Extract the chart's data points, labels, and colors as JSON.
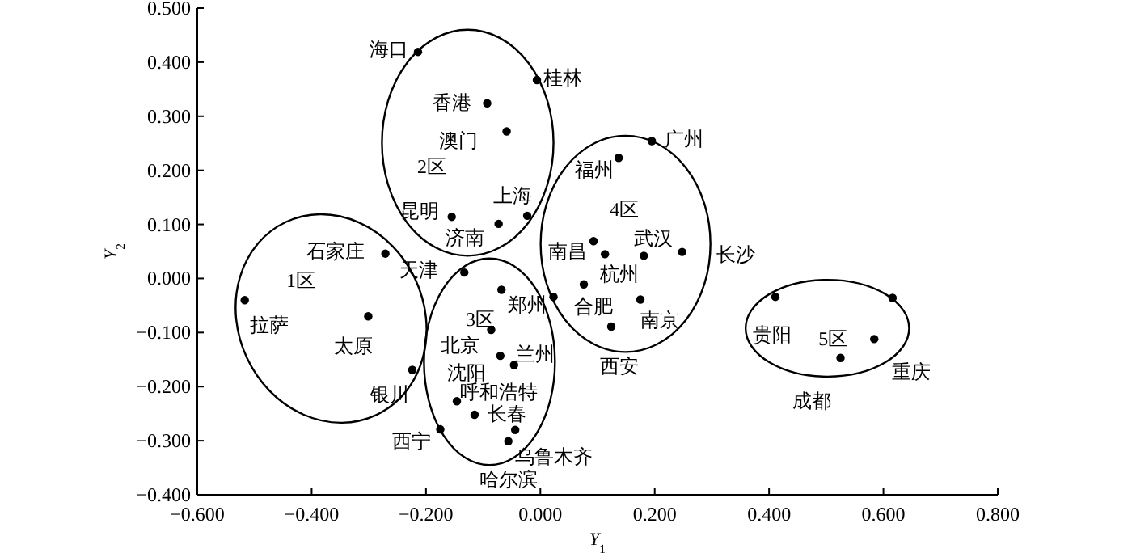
{
  "chart_data": {
    "type": "scatter",
    "xlabel": "Y$_{1}$",
    "ylabel": "Y$_{2}$",
    "marker": "circle",
    "xlim": [
      -0.6,
      0.8
    ],
    "ylim": [
      -0.4,
      0.5
    ],
    "xticks": [
      {
        "value": -0.6,
        "label": "−0.600"
      },
      {
        "value": -0.4,
        "label": "−0.400"
      },
      {
        "value": -0.2,
        "label": "−0.200"
      },
      {
        "value": 0,
        "label": "0.000"
      },
      {
        "value": 0.2,
        "label": "0.200"
      },
      {
        "value": 0.4,
        "label": "0.400"
      },
      {
        "value": 0.6,
        "label": "0.600"
      },
      {
        "value": 0.8,
        "label": "0.800"
      }
    ],
    "yticks": [
      {
        "value": -0.4,
        "label": "−0.400"
      },
      {
        "value": -0.3,
        "label": "−0.300"
      },
      {
        "value": -0.2,
        "label": "−0.200"
      },
      {
        "value": -0.1,
        "label": "−0.100"
      },
      {
        "value": 0,
        "label": "0.000"
      },
      {
        "value": 0.1,
        "label": "0.100"
      },
      {
        "value": 0.2,
        "label": "0.200"
      },
      {
        "value": 0.3,
        "label": "0.300"
      },
      {
        "value": 0.4,
        "label": "0.400"
      },
      {
        "value": 0.5,
        "label": "0.500"
      }
    ],
    "series": [
      {
        "color": "#000000",
        "x": [
          -0.214,
          -0.006,
          -0.093,
          -0.059,
          -0.155,
          -0.073,
          -0.023,
          -0.271,
          -0.133,
          -0.517,
          -0.301,
          -0.224,
          -0.068,
          -0.086,
          -0.07,
          -0.046,
          -0.146,
          -0.115,
          -0.044,
          -0.056,
          -0.175,
          0.137,
          0.195,
          0.093,
          0.113,
          0.181,
          0.248,
          0.076,
          0.175,
          0.124,
          0.411,
          0.525,
          0.584,
          0.023,
          0.616
        ],
        "values": [
          0.419,
          0.367,
          0.324,
          0.272,
          0.114,
          0.101,
          0.116,
          0.046,
          0.011,
          -0.04,
          -0.07,
          -0.169,
          -0.021,
          -0.095,
          -0.143,
          -0.16,
          -0.227,
          -0.252,
          -0.28,
          -0.301,
          -0.279,
          0.223,
          0.254,
          0.069,
          0.045,
          0.042,
          0.049,
          -0.011,
          -0.039,
          -0.089,
          -0.034,
          -0.147,
          -0.112,
          -0.034,
          -0.036
        ]
      }
    ],
    "annotations": [
      {
        "text": "海口",
        "x": -0.214,
        "y": 0.419
      },
      {
        "text": "桂林",
        "x": -0.006,
        "y": 0.367
      },
      {
        "text": "香港",
        "x": -0.093,
        "y": 0.324
      },
      {
        "text": "澳门",
        "x": -0.059,
        "y": 0.272
      },
      {
        "text": "昆明",
        "x": -0.155,
        "y": 0.114
      },
      {
        "text": "济南",
        "x": -0.073,
        "y": 0.101
      },
      {
        "text": "上海",
        "x": -0.023,
        "y": 0.116
      },
      {
        "text": "石家庄",
        "x": -0.271,
        "y": 0.046
      },
      {
        "text": "天津",
        "x": -0.133,
        "y": 0.011
      },
      {
        "text": "拉萨",
        "x": -0.517,
        "y": -0.04
      },
      {
        "text": "太原",
        "x": -0.301,
        "y": -0.07
      },
      {
        "text": "银川",
        "x": -0.224,
        "y": -0.169
      },
      {
        "text": "郑州",
        "x": -0.068,
        "y": -0.021
      },
      {
        "text": "北京",
        "x": -0.086,
        "y": -0.095
      },
      {
        "text": "沈阳",
        "x": -0.07,
        "y": -0.143
      },
      {
        "text": "兰州",
        "x": -0.046,
        "y": -0.16
      },
      {
        "text": "呼和浩特",
        "x": -0.146,
        "y": -0.227
      },
      {
        "text": "长春",
        "x": -0.115,
        "y": -0.252
      },
      {
        "text": "乌鲁木齐",
        "x": -0.044,
        "y": -0.28
      },
      {
        "text": "哈尔滨",
        "x": -0.056,
        "y": -0.301
      },
      {
        "text": "西宁",
        "x": -0.175,
        "y": -0.279
      },
      {
        "text": "福州",
        "x": 0.137,
        "y": 0.223
      },
      {
        "text": "广州",
        "x": 0.195,
        "y": 0.254
      },
      {
        "text": "南昌",
        "x": 0.093,
        "y": 0.069
      },
      {
        "text": "杭州",
        "x": 0.113,
        "y": 0.045
      },
      {
        "text": "武汉",
        "x": 0.181,
        "y": 0.042
      },
      {
        "text": "长沙",
        "x": 0.248,
        "y": 0.049
      },
      {
        "text": "合肥",
        "x": 0.076,
        "y": -0.011
      },
      {
        "text": "南京",
        "x": 0.175,
        "y": -0.039
      },
      {
        "text": "西安",
        "x": 0.124,
        "y": -0.089
      },
      {
        "text": "贵阳",
        "x": 0.411,
        "y": -0.034
      },
      {
        "text": "成都",
        "x": 0.525,
        "y": -0.147
      },
      {
        "text": "重庆",
        "x": 0.584,
        "y": -0.112
      },
      "1区",
      "2区",
      "3区",
      "4区",
      "5区"
    ]
  }
}
